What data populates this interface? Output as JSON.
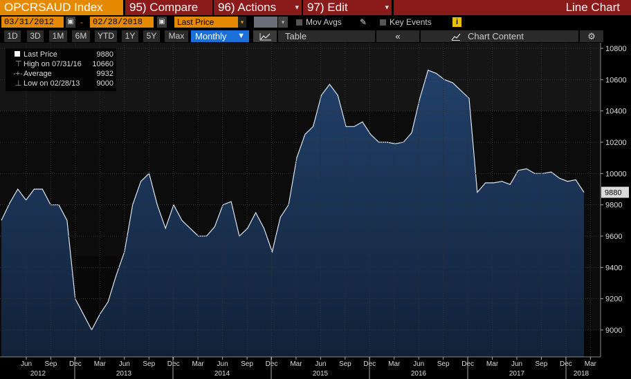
{
  "toolbar": {
    "ticker": "OPCRSAUD Index",
    "compare": {
      "num": "95)",
      "label": " Compare"
    },
    "actions": {
      "num": "96)",
      "label": " Actions"
    },
    "edit": {
      "num": "97)",
      "label": " Edit"
    },
    "chart_type": "Line Chart"
  },
  "controls": {
    "start_date": "03/31/2012",
    "date_sep": "-",
    "end_date": "02/28/2018",
    "price_field": "Last Price",
    "mov_avgs": "Mov Avgs",
    "key_events": "Key Events",
    "info": "i"
  },
  "periods": [
    "1D",
    "3D",
    "1M",
    "6M",
    "YTD",
    "1Y",
    "5Y",
    "Max"
  ],
  "periodicity": "Monthly",
  "table_label": "Table",
  "collapse_label": "«",
  "chart_content_label": "Chart Content",
  "legend": {
    "last": {
      "label": "Last Price",
      "value": "9880"
    },
    "high": {
      "label": "High on 07/31/16",
      "value": "10660"
    },
    "avg": {
      "label": "Average",
      "value": "9932"
    },
    "low": {
      "label": "Low on 02/28/13",
      "value": "9000"
    }
  },
  "colors": {
    "area_fill": "#1a3050",
    "line": "#dce6f2",
    "orange": "#e58a00",
    "red": "#8b1a1a",
    "blue": "#1a6fd8"
  },
  "chart_data": {
    "type": "area",
    "title": "",
    "xlabel": "",
    "ylabel": "",
    "ylim": [
      8850,
      10850
    ],
    "y_ticks": [
      9000,
      9200,
      9400,
      9600,
      9800,
      10000,
      10200,
      10400,
      10600,
      10800
    ],
    "last_value_label": "9880",
    "x_month_ticks": [
      "Jun",
      "Sep",
      "Dec",
      "Mar",
      "Jun",
      "Sep",
      "Dec",
      "Mar",
      "Jun",
      "Sep",
      "Dec",
      "Mar",
      "Jun",
      "Sep",
      "Dec",
      "Mar",
      "Jun",
      "Sep",
      "Dec",
      "Mar",
      "Jun",
      "Sep",
      "Dec",
      "Mar"
    ],
    "x_year_labels": [
      "2012",
      "2013",
      "2014",
      "2015",
      "2016",
      "2017",
      "2018"
    ],
    "series": [
      {
        "values": [
          9700,
          9810,
          9900,
          9830,
          9900,
          9900,
          9800,
          9800,
          9700,
          9200,
          9100,
          9000,
          9100,
          9180,
          9350,
          9500,
          9800,
          9950,
          10000,
          9800,
          9650,
          9800,
          9700,
          9650,
          9600,
          9600,
          9660,
          9800,
          9820,
          9600,
          9650,
          9750,
          9650,
          9500,
          9720,
          9800,
          10100,
          10250,
          10300,
          10500,
          10570,
          10500,
          10300,
          10300,
          10330,
          10250,
          10200,
          10200,
          10190,
          10200,
          10260,
          10480,
          10660,
          10640,
          10600,
          10580,
          10530,
          10480,
          9880,
          9940,
          9940,
          9950,
          9930,
          10020,
          10030,
          10000,
          10000,
          10010,
          9970,
          9950,
          9960,
          9880
        ]
      }
    ]
  }
}
